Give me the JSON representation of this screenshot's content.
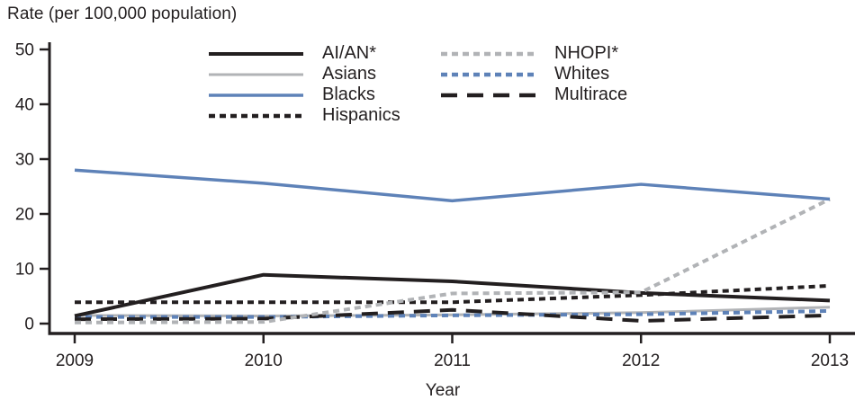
{
  "title": "Rate (per 100,000 population)",
  "colors": {
    "ink": "#231f20",
    "blue": "#5e82b8",
    "gray": "#b1b3b6"
  },
  "chart_data": {
    "type": "line",
    "title": "Rate (per 100,000 population)",
    "xlabel": "Year",
    "ylabel": "Rate (per 100,000 population)",
    "x_categories": [
      "2009",
      "2010",
      "2011",
      "2012",
      "2013"
    ],
    "yticks": [
      "0",
      "10",
      "20",
      "30",
      "40",
      "50"
    ],
    "ylim": [
      0,
      50
    ],
    "grid": false,
    "legend_position": "top-center-two-columns",
    "series": [
      {
        "name": "AI/AN*",
        "values": [
          1.4,
          8.9,
          7.7,
          5.6,
          4.2
        ],
        "color": "#231f20",
        "dash": "solid",
        "width": 4
      },
      {
        "name": "Asians",
        "values": [
          1.5,
          1.4,
          1.6,
          2.0,
          3.0
        ],
        "color": "#b1b3b6",
        "dash": "solid",
        "width": 3
      },
      {
        "name": "Blacks",
        "values": [
          28.0,
          25.6,
          22.4,
          25.4,
          22.7
        ],
        "color": "#5e82b8",
        "dash": "solid",
        "width": 3.5
      },
      {
        "name": "Hispanics",
        "values": [
          3.9,
          3.9,
          3.9,
          5.2,
          6.9
        ],
        "color": "#231f20",
        "dash": "short",
        "width": 4
      },
      {
        "name": "NHOPI*",
        "values": [
          0.2,
          0.3,
          5.5,
          5.7,
          22.7
        ],
        "color": "#b1b3b6",
        "dash": "short",
        "width": 4
      },
      {
        "name": "Whites",
        "values": [
          1.2,
          1.2,
          1.5,
          1.7,
          2.3
        ],
        "color": "#5e82b8",
        "dash": "short",
        "width": 4
      },
      {
        "name": "Multirace",
        "values": [
          0.8,
          0.9,
          2.5,
          0.5,
          1.5
        ],
        "color": "#231f20",
        "dash": "long",
        "width": 4
      }
    ],
    "draw_order": [
      "Asians",
      "Whites",
      "Multirace",
      "AI/AN*",
      "Hispanics",
      "NHOPI*",
      "Blacks"
    ]
  },
  "legend": {
    "column1": [
      "AI/AN*",
      "Asians",
      "Blacks",
      "Hispanics"
    ],
    "column2": [
      "NHOPI*",
      "Whites",
      "Multirace"
    ]
  }
}
